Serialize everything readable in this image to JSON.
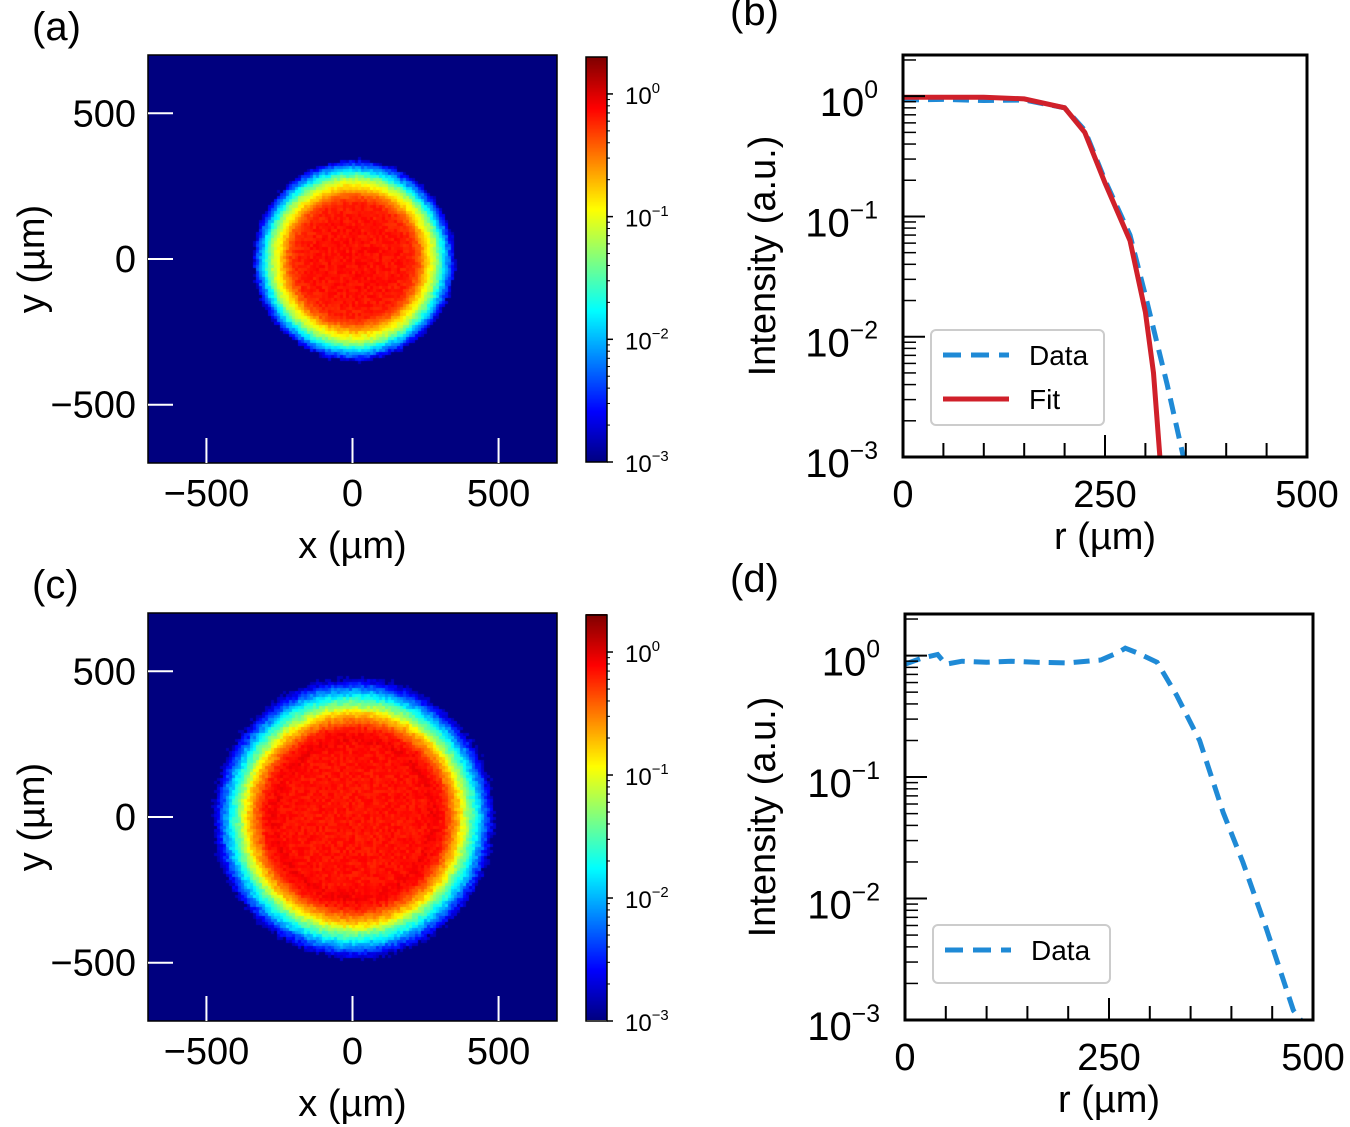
{
  "chart_data": [
    {
      "panel": "(a)",
      "type": "heatmap",
      "xlabel": "x (µm)",
      "ylabel": "y (µm)",
      "xlim": [
        -700,
        700
      ],
      "ylim": [
        -700,
        700
      ],
      "xticks": [
        "−500",
        "0",
        "500"
      ],
      "xtick_values": [
        -500,
        0,
        500
      ],
      "yticks": [
        "500",
        "0",
        "−500"
      ],
      "ytick_values": [
        500,
        0,
        -500
      ],
      "colormap": "jet",
      "color_scale": "log",
      "clim": [
        0.001,
        2
      ],
      "colorbar_ticks": [
        {
          "base": "10",
          "exp": "0",
          "value": 1
        },
        {
          "base": "10",
          "exp": "−1",
          "value": 0.1
        },
        {
          "base": "10",
          "exp": "−2",
          "value": 0.01
        },
        {
          "base": "10",
          "exp": "−3",
          "value": 0.001
        }
      ],
      "profile_r": [
        0,
        100,
        150,
        200,
        225,
        250,
        281,
        300,
        327,
        347
      ],
      "profile_I": [
        0.95,
        0.95,
        0.92,
        0.8,
        0.5,
        0.19,
        0.063,
        0.02,
        0.004,
        0.001
      ]
    },
    {
      "panel": "(b)",
      "type": "line",
      "xlabel": "r (µm)",
      "ylabel": "Intensity (a.u.)",
      "xlim": [
        0,
        500
      ],
      "ylim": [
        0.001,
        2.2
      ],
      "yscale": "log",
      "xticks": [
        "0",
        "250",
        "500"
      ],
      "xtick_values": [
        0,
        250,
        500
      ],
      "yticks": [
        {
          "base": "10",
          "exp": "0",
          "value": 1
        },
        {
          "base": "10",
          "exp": "−1",
          "value": 0.1
        },
        {
          "base": "10",
          "exp": "−2",
          "value": 0.01
        },
        {
          "base": "10",
          "exp": "−3",
          "value": 0.001
        }
      ],
      "legend": "bottom-left",
      "series": [
        {
          "name": "Data",
          "style": "dashed",
          "color": "#1f8ad6",
          "x": [
            0,
            50,
            100,
            150,
            200,
            225,
            250,
            281,
            300,
            327,
            347
          ],
          "y": [
            0.93,
            0.94,
            0.92,
            0.93,
            0.8,
            0.52,
            0.2,
            0.07,
            0.022,
            0.004,
            0.001
          ]
        },
        {
          "name": "Fit",
          "style": "solid",
          "color": "#d0202a",
          "x": [
            0,
            50,
            100,
            150,
            200,
            225,
            250,
            281,
            300,
            310,
            318
          ],
          "y": [
            0.98,
            0.98,
            0.98,
            0.95,
            0.8,
            0.5,
            0.19,
            0.063,
            0.016,
            0.005,
            0.001
          ]
        }
      ]
    },
    {
      "panel": "(c)",
      "type": "heatmap",
      "xlabel": "x (µm)",
      "ylabel": "y (µm)",
      "xlim": [
        -700,
        700
      ],
      "ylim": [
        -700,
        700
      ],
      "xticks": [
        "−500",
        "0",
        "500"
      ],
      "xtick_values": [
        -500,
        0,
        500
      ],
      "yticks": [
        "500",
        "0",
        "−500"
      ],
      "ytick_values": [
        500,
        0,
        -500
      ],
      "colormap": "jet",
      "color_scale": "log",
      "clim": [
        0.001,
        2
      ],
      "colorbar_ticks": [
        {
          "base": "10",
          "exp": "0",
          "value": 1
        },
        {
          "base": "10",
          "exp": "−1",
          "value": 0.1
        },
        {
          "base": "10",
          "exp": "−2",
          "value": 0.01
        },
        {
          "base": "10",
          "exp": "−3",
          "value": 0.001
        }
      ],
      "profile_r": [
        0,
        250,
        270,
        309,
        333,
        361,
        390,
        414,
        443,
        476,
        490
      ],
      "profile_I": [
        0.9,
        0.95,
        1.15,
        0.88,
        0.47,
        0.2,
        0.051,
        0.02,
        0.0056,
        0.0012,
        0.0008
      ]
    },
    {
      "panel": "(d)",
      "type": "line",
      "xlabel": "r (µm)",
      "ylabel": "Intensity (a.u.)",
      "xlim": [
        0,
        500
      ],
      "ylim": [
        0.001,
        2.2
      ],
      "yscale": "log",
      "xticks": [
        "0",
        "250",
        "500"
      ],
      "xtick_values": [
        0,
        250,
        500
      ],
      "yticks": [
        {
          "base": "10",
          "exp": "0",
          "value": 1
        },
        {
          "base": "10",
          "exp": "−1",
          "value": 0.1
        },
        {
          "base": "10",
          "exp": "−2",
          "value": 0.01
        },
        {
          "base": "10",
          "exp": "−3",
          "value": 0.001
        }
      ],
      "legend": "bottom-left",
      "series": [
        {
          "name": "Data",
          "style": "dashed",
          "color": "#1f8ad6",
          "x": [
            0,
            20,
            40,
            50,
            70,
            100,
            130,
            160,
            200,
            240,
            260,
            270,
            285,
            309,
            333,
            361,
            390,
            414,
            443,
            476,
            485
          ],
          "y": [
            0.85,
            0.95,
            1.02,
            0.85,
            0.9,
            0.88,
            0.9,
            0.88,
            0.87,
            0.92,
            1.05,
            1.15,
            1.05,
            0.88,
            0.47,
            0.2,
            0.051,
            0.02,
            0.0056,
            0.0012,
            0.001
          ]
        }
      ]
    }
  ]
}
